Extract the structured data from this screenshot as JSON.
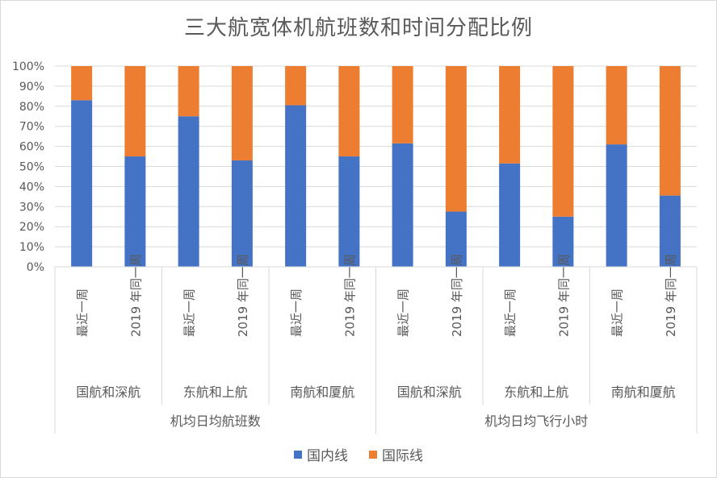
{
  "chart_data": {
    "type": "bar",
    "stacked": "percent",
    "title": "三大航宽体机航班数和时间分配比例",
    "y_ticks": [
      "0%",
      "10%",
      "20%",
      "30%",
      "40%",
      "50%",
      "60%",
      "70%",
      "80%",
      "90%",
      "100%"
    ],
    "ylim": [
      0,
      100
    ],
    "grid": true,
    "legend_position": "bottom",
    "groups": [
      {
        "label": "机均日均航班数",
        "airlines": [
          {
            "label": "国航和深航",
            "periods": [
              "最近一周",
              "2019 年同一周"
            ]
          },
          {
            "label": "东航和上航",
            "periods": [
              "最近一周",
              "2019 年同一周"
            ]
          },
          {
            "label": "南航和厦航",
            "periods": [
              "最近一周",
              "2019 年同一周"
            ]
          }
        ]
      },
      {
        "label": "机均日均飞行小时",
        "airlines": [
          {
            "label": "国航和深航",
            "periods": [
              "最近一周",
              "2019 年同一周"
            ]
          },
          {
            "label": "东航和上航",
            "periods": [
              "最近一周",
              "2019 年同一周"
            ]
          },
          {
            "label": "南航和厦航",
            "periods": [
              "最近一周",
              "2019 年同一周"
            ]
          }
        ]
      }
    ],
    "series": [
      {
        "name": "国内线",
        "color": "#4472c4",
        "values": [
          83,
          55,
          75,
          53,
          80.5,
          55,
          61.5,
          27.5,
          51.5,
          25,
          61,
          35.5
        ]
      },
      {
        "name": "国际线",
        "color": "#ed7d31",
        "values": [
          17,
          45,
          25,
          47,
          19.5,
          45,
          38.5,
          72.5,
          48.5,
          75,
          39,
          64.5
        ]
      }
    ]
  }
}
